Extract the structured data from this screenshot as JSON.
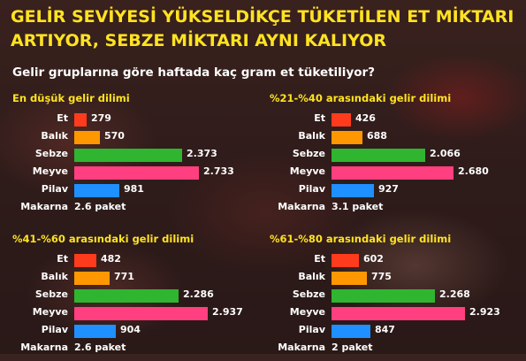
{
  "title_line1": "GELİR SEVİYESİ YÜKSELDİKÇE TÜKETİLEN ET MİKTARI",
  "title_line2": "ARTIYOR, SEBZE MİKTARI AYNI KALIYOR",
  "subtitle": "Gelir gruplarına göre haftada kaç gram et tüketiliyor?",
  "colors": {
    "Et": "#ff3b1e",
    "Balık": "#ff9800",
    "Sebze": "#2fb52f",
    "Meyve": "#ff3f7f",
    "Pilav": "#1e90ff"
  },
  "chart_data": [
    {
      "type": "bar",
      "orientation": "horizontal",
      "title": "En düşük gelir dilimi",
      "categories": [
        "Et",
        "Balık",
        "Sebze",
        "Meyve",
        "Pilav"
      ],
      "values": [
        279,
        570,
        2373,
        2733,
        981
      ],
      "value_labels": [
        "279",
        "570",
        "2.373",
        "2.733",
        "981"
      ],
      "extra_label": "Makarna",
      "extra_value": "2.6 paket"
    },
    {
      "type": "bar",
      "orientation": "horizontal",
      "title": "%21-%40 arasındaki gelir dilimi",
      "categories": [
        "Et",
        "Balık",
        "Sebze",
        "Meyve",
        "Pilav"
      ],
      "values": [
        426,
        688,
        2066,
        2680,
        927
      ],
      "value_labels": [
        "426",
        "688",
        "2.066",
        "2.680",
        "927"
      ],
      "extra_label": "Makarna",
      "extra_value": "3.1 paket"
    },
    {
      "type": "bar",
      "orientation": "horizontal",
      "title": "%41-%60 arasındaki gelir dilimi",
      "categories": [
        "Et",
        "Balık",
        "Sebze",
        "Meyve",
        "Pilav"
      ],
      "values": [
        482,
        771,
        2286,
        2937,
        904
      ],
      "value_labels": [
        "482",
        "771",
        "2.286",
        "2.937",
        "904"
      ],
      "extra_label": "Makarna",
      "extra_value": "2.6 paket"
    },
    {
      "type": "bar",
      "orientation": "horizontal",
      "title": "%61-%80 arasındaki gelir dilimi",
      "categories": [
        "Et",
        "Balık",
        "Sebze",
        "Meyve",
        "Pilav"
      ],
      "values": [
        602,
        775,
        2268,
        2923,
        847
      ],
      "value_labels": [
        "602",
        "775",
        "2.268",
        "2.923",
        "847"
      ],
      "extra_label": "Makarna",
      "extra_value": "2 paket"
    }
  ]
}
